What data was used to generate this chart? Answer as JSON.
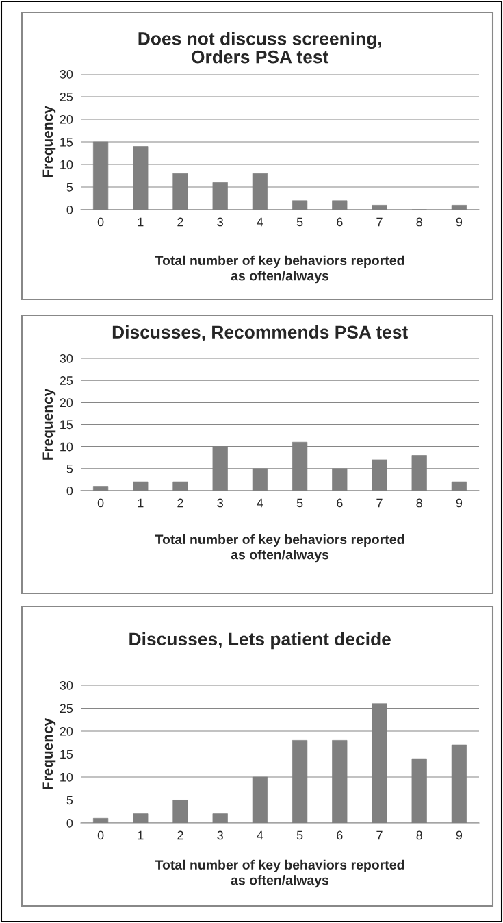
{
  "chart_data": [
    {
      "type": "bar",
      "title": "Does not discuss screening,\nOrders PSA test",
      "xlabel": "Total number of key behaviors reported\nas often/always",
      "ylabel": "Frequency",
      "categories": [
        "0",
        "1",
        "2",
        "3",
        "4",
        "5",
        "6",
        "7",
        "8",
        "9"
      ],
      "values": [
        15,
        14,
        8,
        6,
        8,
        2,
        2,
        1,
        0,
        1
      ],
      "color": "#808080",
      "ylim": [
        0,
        30
      ],
      "yticks": [
        0,
        5,
        10,
        15,
        20,
        25,
        30
      ],
      "grid": "y"
    },
    {
      "type": "bar",
      "title": "Discusses, Recommends PSA test",
      "xlabel": "Total number of key behaviors reported\nas often/always",
      "ylabel": "Frequency",
      "categories": [
        "0",
        "1",
        "2",
        "3",
        "4",
        "5",
        "6",
        "7",
        "8",
        "9"
      ],
      "values": [
        1,
        2,
        2,
        10,
        5,
        11,
        5,
        7,
        8,
        2
      ],
      "color": "#808080",
      "ylim": [
        0,
        30
      ],
      "yticks": [
        0,
        5,
        10,
        15,
        20,
        25,
        30
      ],
      "grid": "y"
    },
    {
      "type": "bar",
      "title": "Discusses, Lets patient decide",
      "xlabel": "Total number of key behaviors reported\nas often/always",
      "ylabel": "Frequency",
      "categories": [
        "0",
        "1",
        "2",
        "3",
        "4",
        "5",
        "6",
        "7",
        "8",
        "9"
      ],
      "values": [
        1,
        2,
        5,
        2,
        10,
        18,
        18,
        26,
        14,
        17
      ],
      "color": "#808080",
      "ylim": [
        0,
        30
      ],
      "yticks": [
        0,
        5,
        10,
        15,
        20,
        25,
        30
      ],
      "grid": "y"
    }
  ]
}
